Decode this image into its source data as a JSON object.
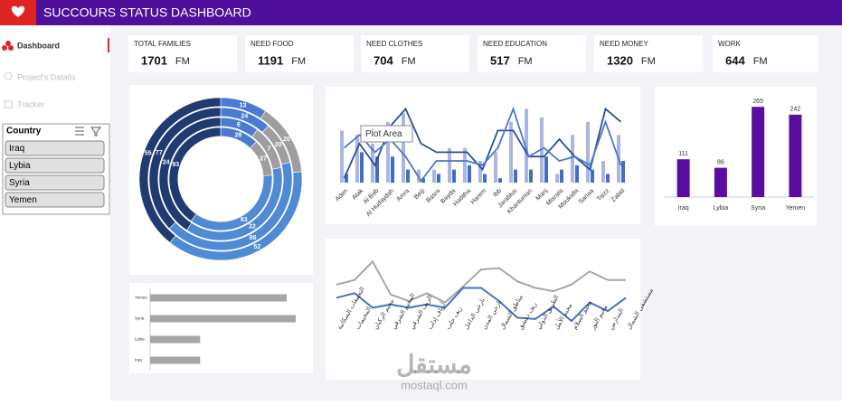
{
  "header": {
    "title": "SUCCOURS STATUS DASHBOARD"
  },
  "sidebar": {
    "nav": [
      "Dashboard",
      "Project's Datails",
      "Tracker"
    ],
    "slicer": {
      "title": "Country",
      "items": [
        "Iraq",
        "Lybia",
        "Syria",
        "Yemen"
      ]
    }
  },
  "kpis": [
    {
      "label": "TOTAL FAMILIES",
      "value": 1701,
      "unit": "FM"
    },
    {
      "label": "NEED FOOD",
      "value": 1191,
      "unit": "FM"
    },
    {
      "label": "NEED CLOTHES",
      "value": 704,
      "unit": "FM"
    },
    {
      "label": "NEED EDUCATION",
      "value": 517,
      "unit": "FM"
    },
    {
      "label": "NEED MONEY",
      "value": 1320,
      "unit": "FM"
    },
    {
      "label": "WORK",
      "value": 644,
      "unit": "FM"
    }
  ],
  "chart_data": [
    {
      "type": "donut",
      "colors": [
        "#4a7bd0",
        "#9e9e9e",
        "#4f8ad6",
        "#1f3c70"
      ],
      "series": [
        {
          "values": [
            13,
            20,
            52,
            55
          ]
        },
        {
          "values": [
            24,
            20,
            86,
            77
          ]
        },
        {
          "values": [
            6,
            7,
            22,
            24
          ]
        },
        {
          "values": [
            28,
            27,
            83,
            93
          ]
        }
      ]
    },
    {
      "type": "combo",
      "annotation": "Plot Area",
      "categories": [
        "Aden",
        "Atak",
        "Al Bab",
        "Al Hudaydah",
        "Amra",
        "Beiji",
        "Basra",
        "Bayda",
        "Haditha",
        "Harem",
        "Ibb",
        "Jarablus",
        "Khantuman",
        "Manj",
        "Misrata",
        "Moukalla",
        "Sanaa",
        "Taizz",
        "Zabid"
      ],
      "ylim": [
        0,
        100
      ],
      "series": [
        {
          "type": "bar",
          "color": "#aab6e2",
          "values": [
            60,
            55,
            45,
            70,
            80,
            15,
            15,
            40,
            40,
            25,
            35,
            70,
            85,
            75,
            10,
            55,
            70,
            25,
            55
          ]
        },
        {
          "type": "bar",
          "color": "#3f6fc0",
          "values": [
            10,
            35,
            30,
            30,
            15,
            5,
            10,
            15,
            20,
            10,
            5,
            15,
            15,
            30,
            15,
            20,
            15,
            10,
            25
          ]
        },
        {
          "type": "line",
          "color": "#2b4f9e",
          "values": [
            5,
            45,
            20,
            65,
            85,
            45,
            35,
            35,
            35,
            15,
            60,
            60,
            30,
            30,
            50,
            30,
            15,
            85,
            70
          ]
        },
        {
          "type": "line",
          "color": "#4a78c8",
          "values": [
            40,
            55,
            35,
            50,
            30,
            2,
            25,
            25,
            25,
            20,
            40,
            85,
            30,
            40,
            25,
            30,
            20,
            70,
            20
          ]
        }
      ]
    },
    {
      "type": "bar",
      "categories": [
        "Iraq",
        "Lybia",
        "Syria",
        "Yemen"
      ],
      "values": [
        111,
        86,
        265,
        242
      ],
      "color": "#5a0ea0",
      "ylim": [
        0,
        300
      ]
    },
    {
      "type": "hbar",
      "categories": [
        "Yemen",
        "Syria",
        "Lybia",
        "Iraq"
      ],
      "values": [
        300,
        320,
        110,
        110
      ],
      "color": "#a6a6a6",
      "xlim": [
        0,
        330
      ]
    },
    {
      "type": "line",
      "categories": [
        "التجمعات السكانية",
        "المخيمات",
        "مخيم الركبان",
        "المخيم الشرقي",
        "الريف الشرقي",
        "أرياف إدلب",
        "ريف حلب",
        "نازحي الداخل",
        "نازحي المدن",
        "مناطق الشمال",
        "ريف دمشق",
        "الطريق الدولي",
        "مخيم الأمل",
        "مخيم السلام",
        "مخيم النور",
        "المدارس",
        "مستشفى الشمال"
      ],
      "ylim": [
        0,
        100
      ],
      "series": [
        {
          "color": "#a6a6a6",
          "values": [
            55,
            62,
            90,
            40,
            30,
            42,
            28,
            52,
            78,
            80,
            60,
            50,
            45,
            55,
            75,
            62,
            62
          ]
        },
        {
          "color": "#4472c4",
          "values": [
            35,
            42,
            20,
            25,
            20,
            25,
            20,
            50,
            50,
            30,
            5,
            3,
            22,
            0,
            28,
            15,
            35
          ]
        }
      ]
    }
  ],
  "watermark": {
    "brand": "مستقل",
    "url": "mostaql.com"
  }
}
